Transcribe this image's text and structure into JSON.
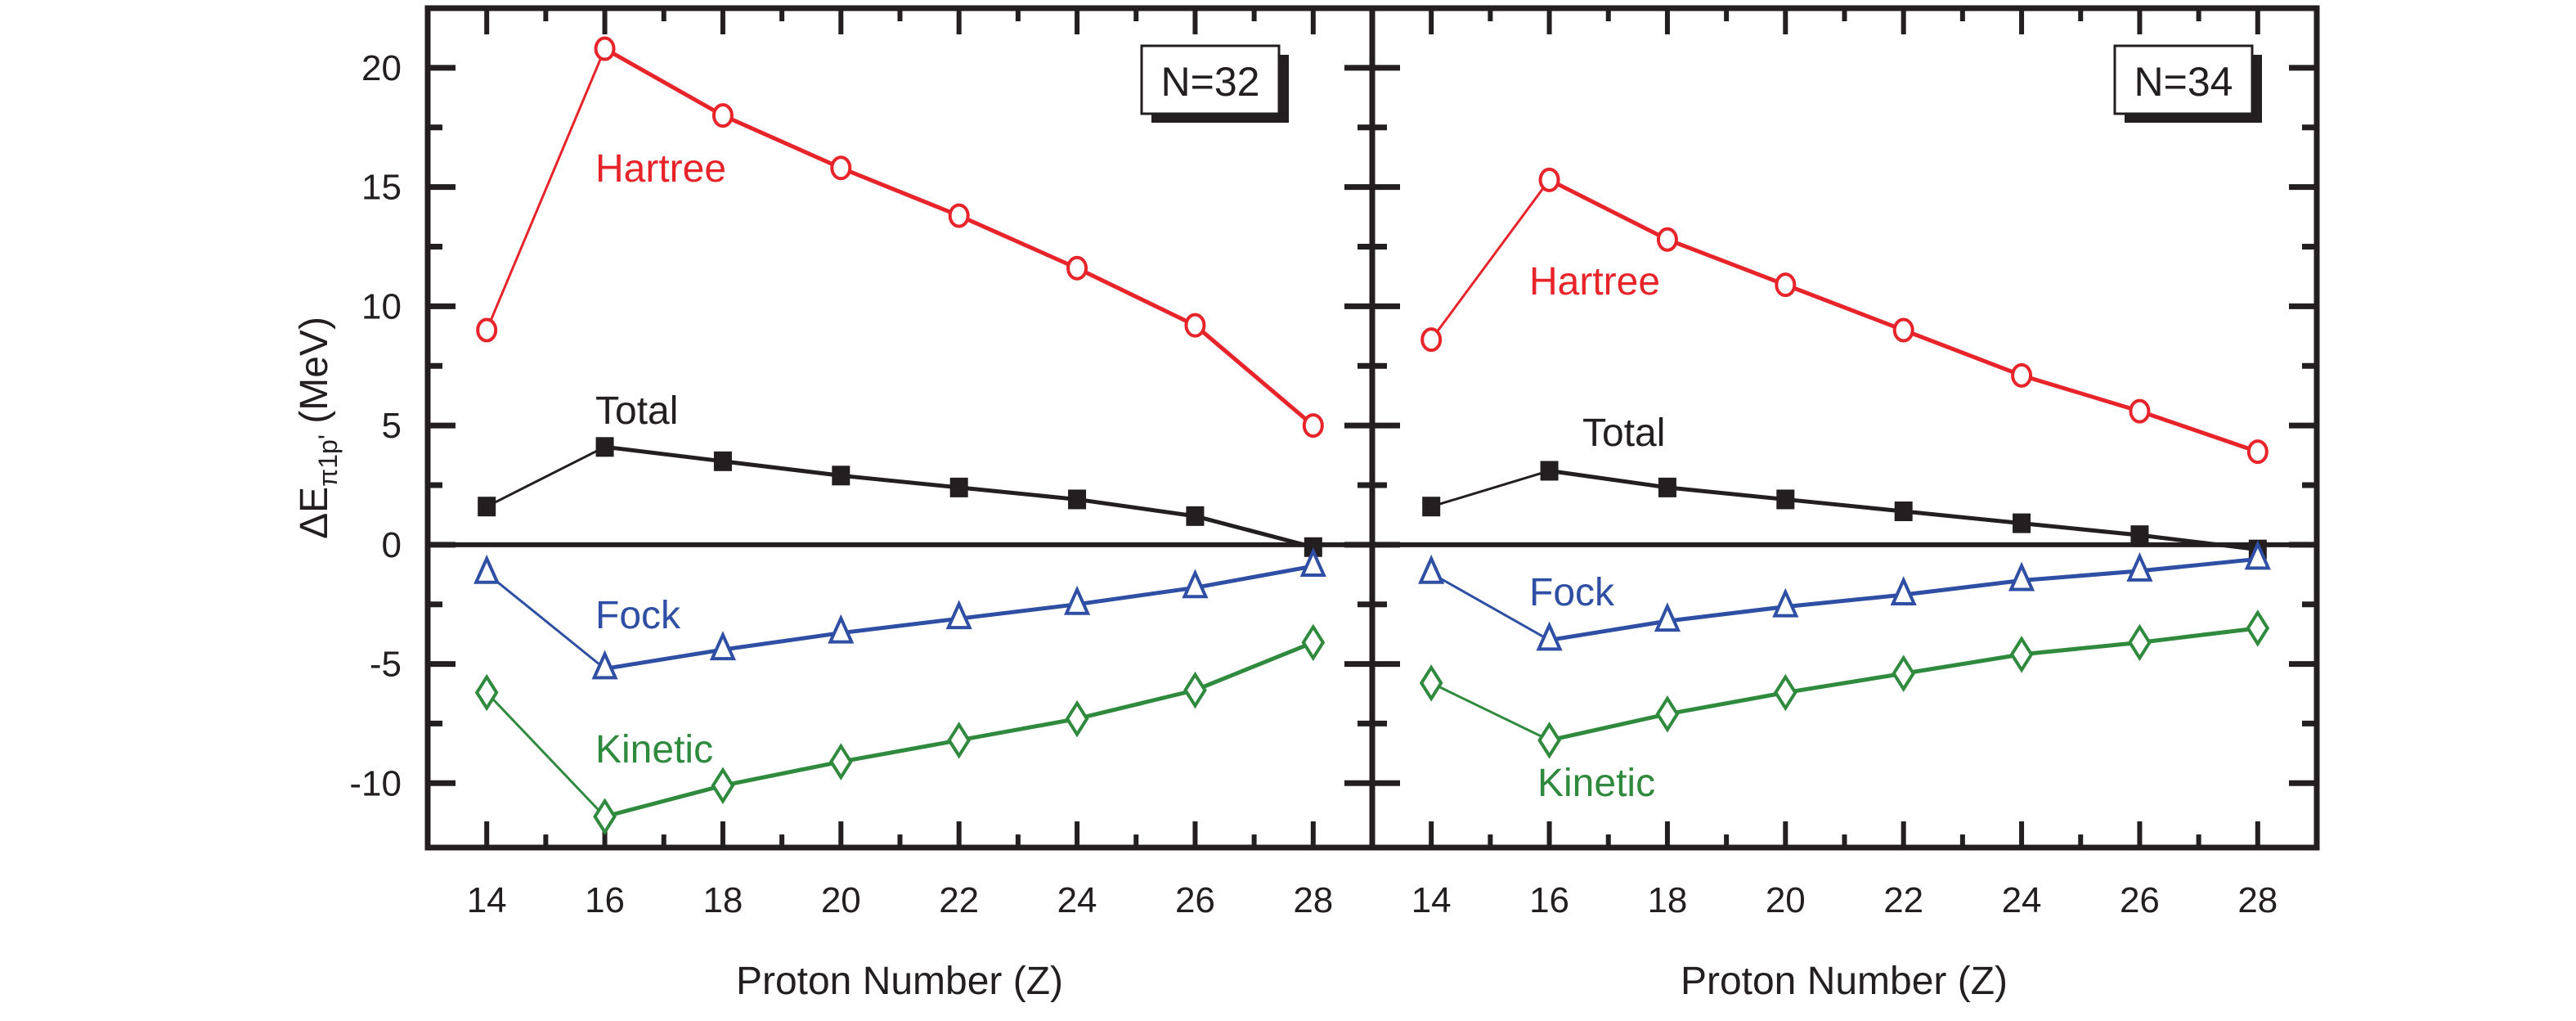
{
  "chart_data": [
    {
      "type": "line",
      "panel_label": "N=32",
      "xlabel": "Proton Number (Z)",
      "ylabel": "ΔE",
      "ylabel_sub": "π1p'",
      "ylabel_unit": " (MeV)",
      "xlim": [
        13,
        29
      ],
      "ylim": [
        -12.7,
        22.5
      ],
      "x_ticks": [
        14,
        16,
        18,
        20,
        22,
        24,
        26,
        28
      ],
      "x_tick_labels": [
        "14",
        "16",
        "18",
        "20",
        "22",
        "24",
        "26",
        "28"
      ],
      "y_ticks": [
        -10,
        -5,
        0,
        5,
        10,
        15,
        20
      ],
      "y_tick_labels": [
        "-10",
        "-5",
        "0",
        "5",
        "10",
        "15",
        "20"
      ],
      "x": [
        14,
        16,
        18,
        20,
        22,
        24,
        26,
        28
      ],
      "series": [
        {
          "name": "Hartree",
          "color": "#e8242b",
          "marker": "circle-open",
          "values": [
            9.0,
            20.8,
            18.0,
            15.8,
            13.8,
            11.6,
            9.2,
            5.0
          ]
        },
        {
          "name": "Total",
          "color": "#231f20",
          "marker": "square-filled",
          "values": [
            1.6,
            4.1,
            3.5,
            2.9,
            2.4,
            1.9,
            1.2,
            -0.1
          ]
        },
        {
          "name": "Fock",
          "color": "#2e4fa3",
          "marker": "triangle-open",
          "values": [
            -1.2,
            -5.2,
            -4.4,
            -3.7,
            -3.1,
            -2.5,
            -1.8,
            -0.9
          ]
        },
        {
          "name": "Kinetic",
          "color": "#2f8a3e",
          "marker": "diamond-open",
          "values": [
            -6.2,
            -11.4,
            -10.1,
            -9.1,
            -8.2,
            -7.3,
            -6.1,
            -4.1
          ]
        }
      ],
      "grid": false,
      "zero_line": true
    },
    {
      "type": "line",
      "panel_label": "N=34",
      "xlabel": "Proton Number (Z)",
      "xlim": [
        13,
        29
      ],
      "ylim": [
        -12.7,
        22.5
      ],
      "x_ticks": [
        14,
        16,
        18,
        20,
        22,
        24,
        26,
        28
      ],
      "x_tick_labels": [
        "14",
        "16",
        "18",
        "20",
        "22",
        "24",
        "26",
        "28"
      ],
      "x": [
        14,
        16,
        18,
        20,
        22,
        24,
        26,
        28
      ],
      "series": [
        {
          "name": "Hartree",
          "color": "#e8242b",
          "marker": "circle-open",
          "values": [
            8.6,
            15.3,
            12.8,
            10.9,
            9.0,
            7.1,
            5.6,
            3.9
          ]
        },
        {
          "name": "Total",
          "color": "#231f20",
          "marker": "square-filled",
          "values": [
            1.6,
            3.1,
            2.4,
            1.9,
            1.4,
            0.9,
            0.4,
            -0.2
          ]
        },
        {
          "name": "Fock",
          "color": "#2e4fa3",
          "marker": "triangle-open",
          "values": [
            -1.2,
            -4.0,
            -3.2,
            -2.6,
            -2.1,
            -1.5,
            -1.1,
            -0.6
          ]
        },
        {
          "name": "Kinetic",
          "color": "#2f8a3e",
          "marker": "diamond-open",
          "values": [
            -5.8,
            -8.2,
            -7.1,
            -6.2,
            -5.4,
            -4.6,
            -4.1,
            -3.5
          ]
        }
      ],
      "grid": false,
      "zero_line": true
    }
  ]
}
